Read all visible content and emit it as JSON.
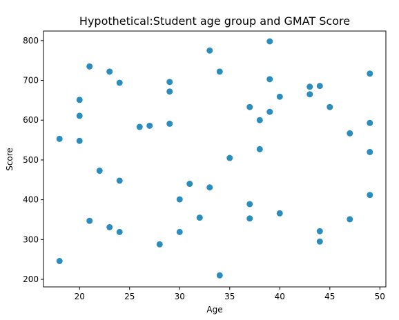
{
  "chart_data": {
    "type": "scatter",
    "title": "Hypothetical:Student age group and GMAT Score",
    "xlabel": "Age",
    "ylabel": "Score",
    "xlim": [
      16.4,
      50.6
    ],
    "ylim": [
      181,
      824
    ],
    "xticks": [
      20,
      25,
      30,
      35,
      40,
      45,
      50
    ],
    "yticks": [
      200,
      300,
      400,
      500,
      600,
      700,
      800
    ],
    "grid": false,
    "marker_color": "#2b8cbe",
    "points": [
      {
        "x": 18,
        "y": 553
      },
      {
        "x": 18,
        "y": 246
      },
      {
        "x": 20,
        "y": 651
      },
      {
        "x": 20,
        "y": 611
      },
      {
        "x": 20,
        "y": 548
      },
      {
        "x": 21,
        "y": 735
      },
      {
        "x": 21,
        "y": 347
      },
      {
        "x": 22,
        "y": 473
      },
      {
        "x": 23,
        "y": 722
      },
      {
        "x": 23,
        "y": 331
      },
      {
        "x": 24,
        "y": 694
      },
      {
        "x": 24,
        "y": 448
      },
      {
        "x": 24,
        "y": 319
      },
      {
        "x": 26,
        "y": 583
      },
      {
        "x": 27,
        "y": 586
      },
      {
        "x": 28,
        "y": 288
      },
      {
        "x": 29,
        "y": 696
      },
      {
        "x": 29,
        "y": 672
      },
      {
        "x": 29,
        "y": 591
      },
      {
        "x": 30,
        "y": 401
      },
      {
        "x": 30,
        "y": 319
      },
      {
        "x": 31,
        "y": 440
      },
      {
        "x": 32,
        "y": 355
      },
      {
        "x": 33,
        "y": 775
      },
      {
        "x": 33,
        "y": 431
      },
      {
        "x": 34,
        "y": 722
      },
      {
        "x": 34,
        "y": 210
      },
      {
        "x": 35,
        "y": 505
      },
      {
        "x": 37,
        "y": 633
      },
      {
        "x": 37,
        "y": 389
      },
      {
        "x": 37,
        "y": 353
      },
      {
        "x": 38,
        "y": 600
      },
      {
        "x": 38,
        "y": 527
      },
      {
        "x": 39,
        "y": 798
      },
      {
        "x": 39,
        "y": 703
      },
      {
        "x": 39,
        "y": 621
      },
      {
        "x": 40,
        "y": 659
      },
      {
        "x": 40,
        "y": 366
      },
      {
        "x": 43,
        "y": 684
      },
      {
        "x": 43,
        "y": 665
      },
      {
        "x": 44,
        "y": 686
      },
      {
        "x": 44,
        "y": 321
      },
      {
        "x": 44,
        "y": 295
      },
      {
        "x": 45,
        "y": 633
      },
      {
        "x": 47,
        "y": 567
      },
      {
        "x": 47,
        "y": 351
      },
      {
        "x": 49,
        "y": 717
      },
      {
        "x": 49,
        "y": 593
      },
      {
        "x": 49,
        "y": 520
      },
      {
        "x": 49,
        "y": 412
      }
    ]
  }
}
